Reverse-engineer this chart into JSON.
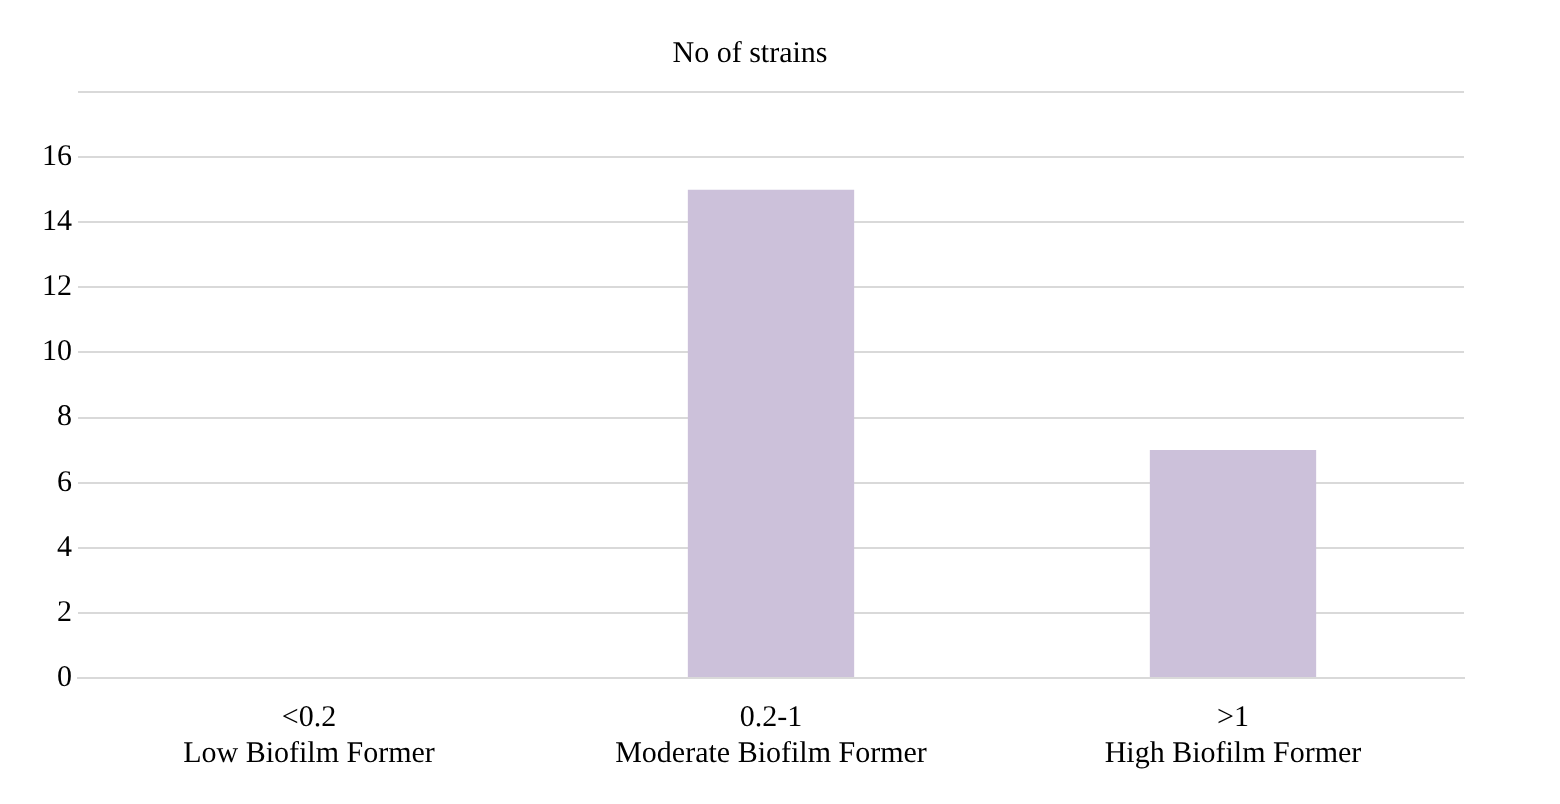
{
  "chart_data": {
    "type": "bar",
    "title": "No of strains",
    "categories": [
      "<0.2\nLow Biofilm Former",
      "0.2-1\nModerate Biofilm Former",
      ">1\nHigh Biofilm Former"
    ],
    "values": [
      0,
      15,
      7
    ],
    "color": "#ccc1da",
    "ylim": [
      0,
      18
    ],
    "yticks": [
      0,
      2,
      4,
      6,
      8,
      10,
      12,
      14,
      16,
      {
        "value": 18,
        "label": null
      }
    ],
    "grid": "y",
    "legend": false
  }
}
